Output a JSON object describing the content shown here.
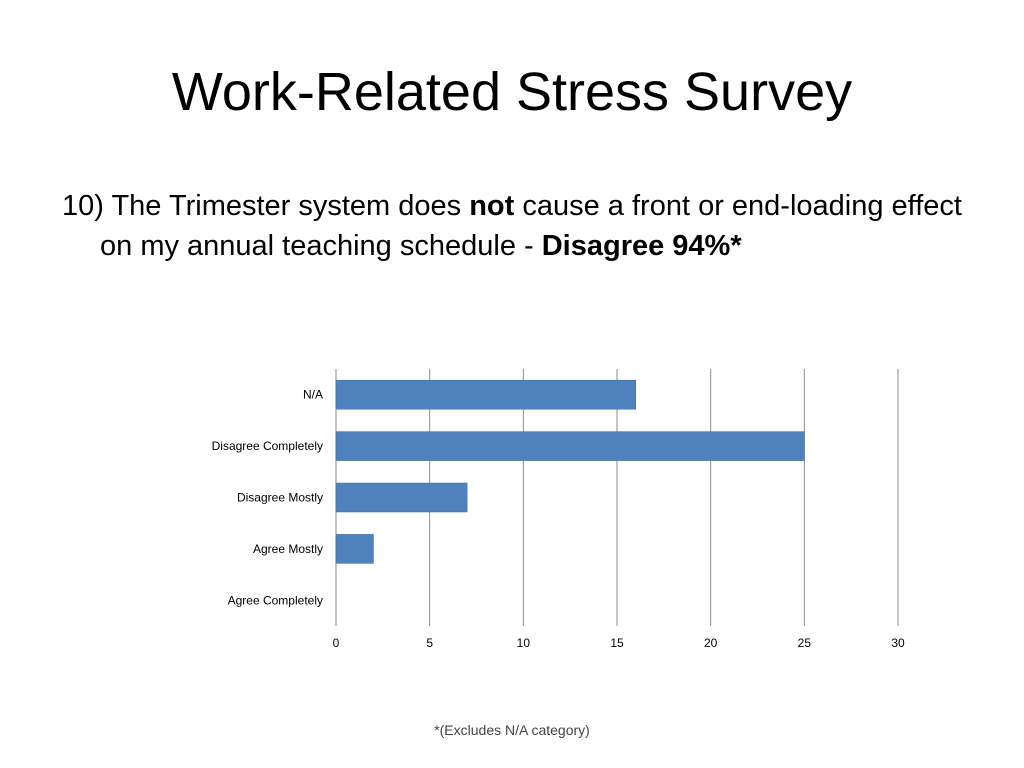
{
  "slide": {
    "title": "Work-Related Stress Survey",
    "question": {
      "prefix": "10) The Trimester system does ",
      "emphasis": "not",
      "middle": " cause a front or end-loading effect on my annual teaching schedule - ",
      "result": "Disagree 94%*"
    },
    "footnote": "*(Excludes N/A category)"
  },
  "chart_data": {
    "type": "bar",
    "orientation": "horizontal",
    "categories": [
      "N/A",
      "Disagree Completely",
      "Disagree Mostly",
      "Agree Mostly",
      "Agree Completely"
    ],
    "values": [
      16,
      25,
      7,
      2,
      0
    ],
    "xlim": [
      0,
      30
    ],
    "xticks": [
      0,
      5,
      10,
      15,
      20,
      25,
      30
    ],
    "grid": true,
    "bar_color": "#4F81BD",
    "title": "",
    "xlabel": "",
    "ylabel": ""
  }
}
